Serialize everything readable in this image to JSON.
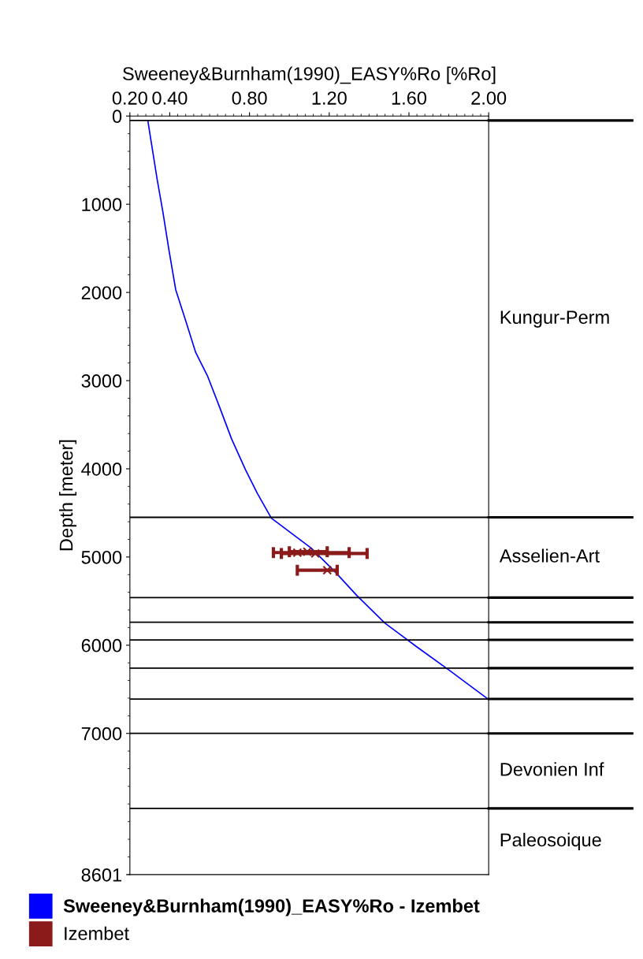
{
  "chart_data": {
    "type": "line",
    "xlabel": "Sweeney&Burnham(1990)_EASY%Ro [%Ro]",
    "ylabel": "Depth [meter]",
    "xlim": [
      0.2,
      2.0
    ],
    "xticks": [
      {
        "value": 0.2,
        "label": "0.20"
      },
      {
        "value": 0.4,
        "label": "0.40"
      },
      {
        "value": 0.8,
        "label": "0.80"
      },
      {
        "value": 1.2,
        "label": "1.20"
      },
      {
        "value": 1.6,
        "label": "1.60"
      },
      {
        "value": 2.0,
        "label": "2.00"
      }
    ],
    "ylim": [
      8601,
      0
    ],
    "yticks": [
      0,
      1000,
      2000,
      3000,
      4000,
      5000,
      6000,
      7000,
      8601
    ],
    "grid": false,
    "legend": "bottom",
    "series": [
      {
        "name": "Sweeney&Burnham(1990)_EASY%Ro - Izembet",
        "color": "#0000ff",
        "marker": "none",
        "line_style": "solid",
        "x": [
          0.29,
          0.306,
          0.337,
          0.365,
          0.396,
          0.43,
          0.48,
          0.53,
          0.59,
          0.65,
          0.71,
          0.78,
          0.84,
          0.91,
          1.01,
          1.11,
          1.23,
          1.34,
          1.48,
          1.64,
          1.8,
          1.99
        ],
        "values": [
          50,
          280,
          720,
          1080,
          1520,
          1970,
          2320,
          2680,
          2950,
          3300,
          3660,
          4010,
          4280,
          4560,
          4730,
          4900,
          5170,
          5440,
          5750,
          6020,
          6280,
          6600
        ]
      },
      {
        "name": "Izembet",
        "type": "scatter",
        "color": "#8b1a1a",
        "marker": "cross",
        "x": [
          1.04,
          1.09,
          1.13,
          1.19
        ],
        "values": [
          4950,
          4940,
          4960,
          5150
        ],
        "xerrors": [
          [
            0.92,
            1.3
          ],
          [
            1.0,
            1.19
          ],
          [
            0.96,
            1.39
          ],
          [
            1.04,
            1.24
          ]
        ]
      }
    ],
    "annotations": [
      "Kungur-Perm"
    ],
    "ref_lines": [
      {
        "axis": "y",
        "value": 50
      },
      {
        "axis": "y",
        "value": 4550,
        "label": "Asselien-Art"
      },
      {
        "axis": "y",
        "value": 5460
      },
      {
        "axis": "y",
        "value": 5740
      },
      {
        "axis": "y",
        "value": 5940
      },
      {
        "axis": "y",
        "value": 6260
      },
      {
        "axis": "y",
        "value": 6610
      },
      {
        "axis": "y",
        "value": 7000,
        "label": "Devonien Inf"
      },
      {
        "axis": "y",
        "value": 7850,
        "label": "Paleosoique"
      }
    ]
  }
}
